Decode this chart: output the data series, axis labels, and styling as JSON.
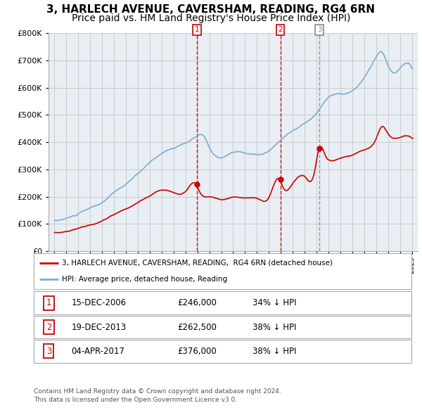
{
  "title": "3, HARLECH AVENUE, CAVERSHAM, READING, RG4 6RN",
  "subtitle": "Price paid vs. HM Land Registry's House Price Index (HPI)",
  "ylim": [
    0,
    800000
  ],
  "yticks": [
    0,
    100000,
    200000,
    300000,
    400000,
    500000,
    600000,
    700000,
    800000
  ],
  "legend_line1": "3, HARLECH AVENUE, CAVERSHAM, READING,  RG4 6RN (detached house)",
  "legend_line2": "HPI: Average price, detached house, Reading",
  "footer": "Contains HM Land Registry data © Crown copyright and database right 2024.\nThis data is licensed under the Open Government Licence v3.0.",
  "transactions": [
    {
      "num": 1,
      "date": "15-DEC-2006",
      "price": "£246,000",
      "hpi": "34% ↓ HPI",
      "year": 2006.96
    },
    {
      "num": 2,
      "date": "19-DEC-2013",
      "price": "£262,500",
      "hpi": "38% ↓ HPI",
      "year": 2013.96
    },
    {
      "num": 3,
      "date": "04-APR-2017",
      "price": "£376,000",
      "hpi": "38% ↓ HPI",
      "year": 2017.25
    }
  ],
  "hpi_color": "#7aadd4",
  "price_color": "#cc0000",
  "vline_color_red": "#cc0000",
  "vline_color_grey": "#888888",
  "grid_color": "#cccccc",
  "chart_bg_color": "#e8eef4",
  "bg_color": "#ffffff",
  "title_fontsize": 11,
  "subtitle_fontsize": 10,
  "xmin": 1994.5,
  "xmax": 2025.5
}
